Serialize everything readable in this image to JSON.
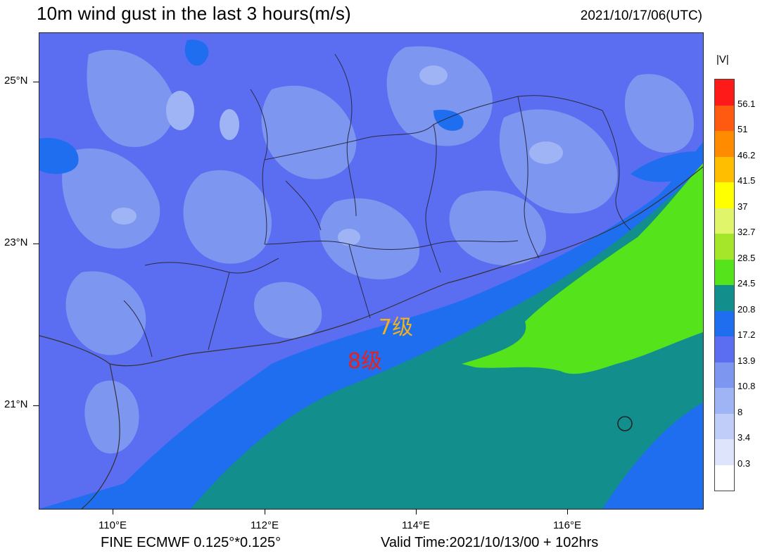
{
  "title": "10m wind gust in the last 3 hours(m/s)",
  "datetime": "2021/10/17/06(UTC)",
  "footer": {
    "resolution": "FINE ECMWF 0.125°*0.125°",
    "valid_time": "Valid Time:2021/10/13/00 + 102hrs"
  },
  "axes": {
    "lat_ticks": [
      "25°N",
      "23°N",
      "21°N"
    ],
    "lon_ticks": [
      "110°E",
      "112°E",
      "114°E",
      "116°E"
    ]
  },
  "legend": {
    "title": "|V|",
    "levels": [
      "56.1",
      "51",
      "46.2",
      "41.5",
      "37",
      "32.7",
      "28.5",
      "24.5",
      "20.8",
      "17.2",
      "13.9",
      "10.8",
      "8",
      "3.4",
      "0.3"
    ],
    "colors": [
      "#ff1a1a",
      "#ff5a10",
      "#ff8c00",
      "#ffbf00",
      "#ffff00",
      "#e0f56a",
      "#a6e62a",
      "#55e31b",
      "#128f8c",
      "#1e6eef",
      "#5b6df0",
      "#7d96f0",
      "#9fb4f5",
      "#bfcdf8",
      "#dde4fb",
      "#ffffff"
    ]
  },
  "annotations": {
    "level7": "7级",
    "level8": "8级",
    "level7_color": "#f2b21d",
    "level8_color": "#e8211b"
  }
}
